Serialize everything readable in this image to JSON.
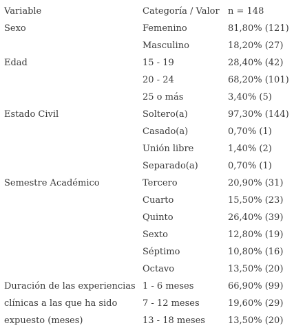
{
  "table": {
    "headers": [
      "Variable",
      "Categoría / Valor",
      "n = 148"
    ],
    "rows": [
      [
        "Sexo",
        "Femenino",
        "81,80% (121)"
      ],
      [
        "",
        "Masculino",
        "18,20% (27)"
      ],
      [
        "Edad",
        "15 - 19",
        "28,40% (42)"
      ],
      [
        "",
        "20 - 24",
        "68,20% (101)"
      ],
      [
        "",
        "25 o más",
        "3,40% (5)"
      ],
      [
        "Estado Civil",
        "Soltero(a)",
        "97,30% (144)"
      ],
      [
        "",
        "Casado(a)",
        "0,70% (1)"
      ],
      [
        "",
        "Unión libre",
        "1,40% (2)"
      ],
      [
        "",
        "Separado(a)",
        "0,70% (1)"
      ],
      [
        "Semestre Académico",
        "Tercero",
        "20,90% (31)"
      ],
      [
        "",
        "Cuarto",
        "15,50% (23)"
      ],
      [
        "",
        "Quinto",
        "26,40% (39)"
      ],
      [
        "",
        "Sexto",
        "12,80% (19)"
      ],
      [
        "",
        "Séptimo",
        "10,80% (16)"
      ],
      [
        "",
        "Octavo",
        "13,50% (20)"
      ],
      [
        "Duración de las experiencias",
        "1 - 6 meses",
        "66,90% (99)"
      ],
      [
        "clínicas a las que ha sido",
        "7 - 12 meses",
        "19,60% (29)"
      ],
      [
        "expuesto (meses)",
        "13 - 18 meses",
        "13,50% (20)"
      ]
    ]
  }
}
